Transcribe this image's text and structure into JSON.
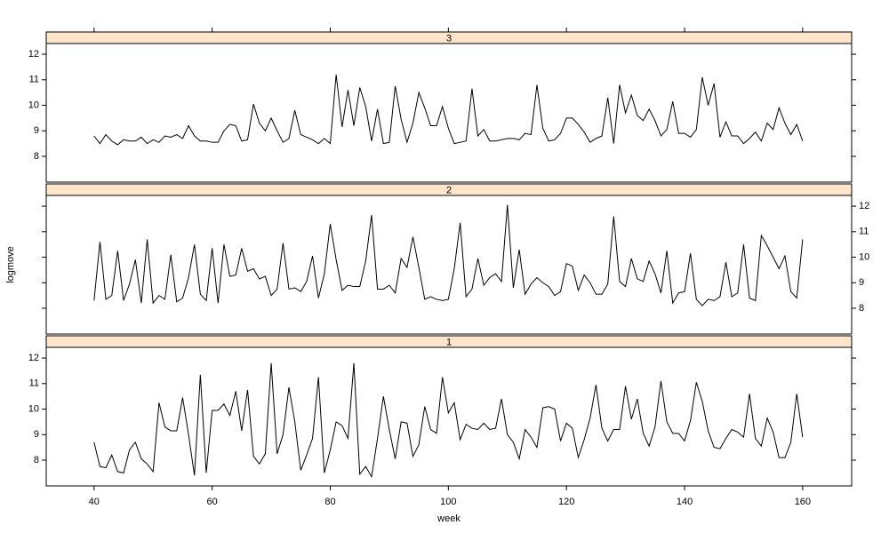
{
  "chart_data": {
    "type": "line",
    "xlabel": "week",
    "ylabel": "logmove",
    "color": "#000000",
    "strip_color": "#ffe5cc",
    "x": [
      40,
      41,
      42,
      43,
      44,
      45,
      46,
      47,
      48,
      49,
      50,
      51,
      52,
      53,
      54,
      55,
      56,
      57,
      58,
      59,
      60,
      61,
      62,
      63,
      64,
      65,
      66,
      67,
      68,
      69,
      70,
      71,
      72,
      73,
      74,
      75,
      76,
      77,
      78,
      79,
      80,
      81,
      82,
      83,
      84,
      85,
      86,
      87,
      88,
      89,
      90,
      91,
      92,
      93,
      94,
      95,
      96,
      97,
      98,
      99,
      100,
      101,
      102,
      103,
      104,
      105,
      106,
      107,
      108,
      109,
      110,
      111,
      112,
      113,
      114,
      115,
      116,
      117,
      118,
      119,
      120,
      121,
      122,
      123,
      124,
      125,
      126,
      127,
      128,
      129,
      130,
      131,
      132,
      133,
      134,
      135,
      136,
      137,
      138,
      139,
      140,
      141,
      142,
      143,
      144,
      145,
      146,
      147,
      148,
      149,
      150,
      151,
      152,
      153,
      154,
      155,
      156,
      157,
      158,
      159,
      160
    ],
    "xlim": [
      31.9,
      168.3
    ],
    "xticks": [
      40,
      60,
      80,
      100,
      120,
      140,
      160
    ],
    "ylim": [
      6.99,
      12.42
    ],
    "yticks": [
      8,
      9,
      10,
      11,
      12
    ],
    "panels": [
      {
        "name": "3",
        "values": [
          8.8,
          8.5,
          8.85,
          8.6,
          8.45,
          8.65,
          8.6,
          8.6,
          8.75,
          8.5,
          8.65,
          8.55,
          8.8,
          8.75,
          8.85,
          8.7,
          9.2,
          8.8,
          8.6,
          8.6,
          8.55,
          8.55,
          9.0,
          9.25,
          9.2,
          8.6,
          8.65,
          10.05,
          9.3,
          9.0,
          9.5,
          9.0,
          8.55,
          8.7,
          9.8,
          8.85,
          8.75,
          8.65,
          8.5,
          8.7,
          8.5,
          11.2,
          9.15,
          10.6,
          9.2,
          10.7,
          9.95,
          8.6,
          9.85,
          8.5,
          8.55,
          10.75,
          9.45,
          8.55,
          9.3,
          10.5,
          9.9,
          9.2,
          9.2,
          9.95,
          9.1,
          8.5,
          8.55,
          8.6,
          10.65,
          8.8,
          9.05,
          8.6,
          8.6,
          8.65,
          8.7,
          8.7,
          8.65,
          8.9,
          8.85,
          10.8,
          9.1,
          8.6,
          8.65,
          8.9,
          9.5,
          9.5,
          9.25,
          8.95,
          8.55,
          8.7,
          8.8,
          10.3,
          8.5,
          10.8,
          9.7,
          10.4,
          9.6,
          9.4,
          9.85,
          9.4,
          8.8,
          9.05,
          10.15,
          8.9,
          8.9,
          8.75,
          9.05,
          11.1,
          10.0,
          10.85,
          8.75,
          9.35,
          8.8,
          8.8,
          8.5,
          8.7,
          8.95,
          8.6,
          9.3,
          9.05,
          9.9,
          9.3,
          8.85,
          9.25,
          8.6
        ]
      },
      {
        "name": "2",
        "values": [
          8.3,
          10.6,
          8.35,
          8.5,
          10.25,
          8.3,
          8.95,
          9.9,
          8.2,
          10.7,
          8.2,
          8.5,
          8.35,
          10.1,
          8.25,
          8.4,
          9.2,
          10.5,
          8.55,
          8.3,
          10.35,
          8.2,
          10.5,
          9.25,
          9.3,
          10.35,
          9.45,
          9.55,
          9.15,
          9.25,
          8.5,
          8.75,
          10.55,
          8.75,
          8.8,
          8.65,
          9.05,
          10.05,
          8.4,
          9.35,
          11.3,
          9.9,
          8.7,
          8.9,
          8.85,
          8.85,
          9.85,
          11.65,
          8.75,
          8.75,
          8.9,
          8.6,
          9.95,
          9.6,
          10.8,
          9.6,
          8.35,
          8.45,
          8.35,
          8.3,
          8.35,
          9.55,
          11.35,
          8.45,
          8.75,
          9.95,
          8.9,
          9.2,
          9.35,
          9.05,
          12.05,
          8.8,
          10.3,
          8.55,
          8.95,
          9.2,
          9.0,
          8.85,
          8.5,
          8.65,
          9.75,
          9.65,
          8.7,
          9.3,
          9.0,
          8.55,
          8.55,
          8.95,
          11.6,
          9.05,
          8.85,
          9.95,
          9.15,
          9.05,
          9.85,
          9.35,
          8.6,
          10.25,
          8.2,
          8.6,
          8.65,
          10.15,
          8.35,
          8.1,
          8.35,
          8.3,
          8.45,
          9.8,
          8.45,
          8.6,
          10.5,
          8.4,
          8.3,
          10.85,
          10.45,
          10.0,
          9.55,
          10.05,
          8.65,
          8.4,
          10.7
        ]
      },
      {
        "name": "1",
        "values": [
          8.7,
          7.75,
          7.7,
          8.2,
          7.55,
          7.5,
          8.4,
          8.7,
          8.05,
          7.85,
          7.55,
          10.25,
          9.3,
          9.15,
          9.15,
          10.45,
          9.0,
          7.4,
          11.35,
          7.5,
          9.95,
          9.95,
          10.2,
          9.75,
          10.7,
          9.15,
          10.75,
          8.15,
          7.85,
          8.25,
          11.8,
          8.25,
          9.0,
          10.85,
          9.5,
          7.6,
          8.2,
          8.85,
          11.25,
          7.5,
          8.4,
          9.5,
          9.35,
          8.85,
          11.8,
          7.45,
          7.75,
          7.35,
          8.85,
          10.5,
          9.2,
          8.05,
          9.5,
          9.45,
          8.15,
          8.6,
          10.1,
          9.2,
          9.05,
          11.25,
          9.85,
          10.25,
          8.8,
          9.4,
          9.25,
          9.2,
          9.45,
          9.2,
          9.25,
          10.4,
          9.0,
          8.7,
          8.05,
          9.2,
          8.9,
          8.5,
          10.05,
          10.1,
          10.0,
          8.75,
          9.45,
          9.25,
          8.1,
          8.8,
          9.65,
          10.95,
          9.25,
          8.75,
          9.2,
          9.2,
          10.9,
          9.6,
          10.4,
          9.05,
          8.55,
          9.3,
          11.1,
          9.5,
          9.05,
          9.05,
          8.75,
          9.55,
          11.05,
          10.3,
          9.15,
          8.5,
          8.45,
          8.85,
          9.2,
          9.1,
          8.9,
          10.6,
          8.85,
          8.55,
          9.65,
          9.1,
          8.1,
          8.1,
          8.7,
          10.6,
          8.9
        ]
      }
    ]
  }
}
